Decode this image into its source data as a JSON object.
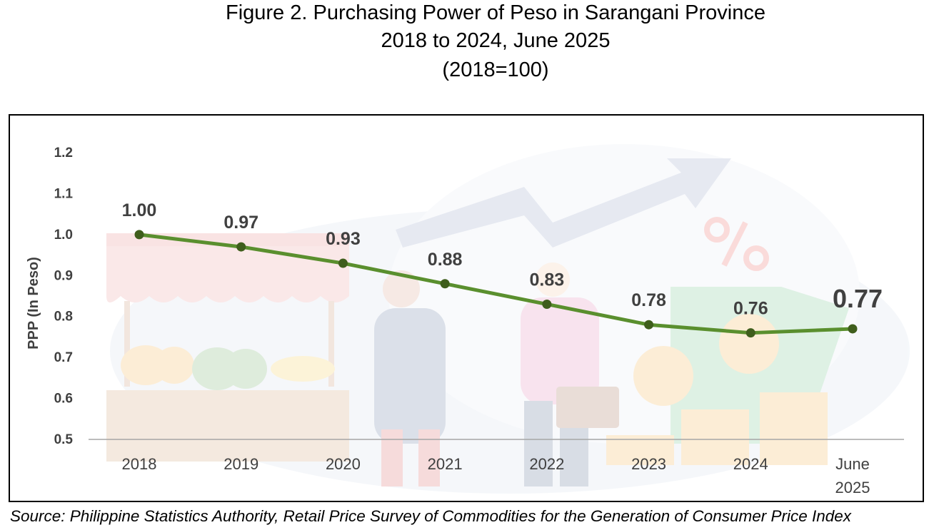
{
  "title": {
    "line1": "Figure 2. Purchasing Power of Peso in Sarangani Province",
    "line2": "2018 to 2024, June 2025",
    "line3": "(2018=100)"
  },
  "source": "Source: Philippine Statistics Authority, Retail Price Survey of Commodities for the Generation of Consumer Price Index",
  "colors": {
    "line": "#5a8f2e",
    "marker": "#3f5e1c",
    "axis": "#a6a6a6",
    "label": "#404040"
  },
  "chart_data": {
    "type": "line",
    "categories": [
      "2018",
      "2019",
      "2020",
      "2021",
      "2022",
      "2023",
      "2024",
      "June 2025"
    ],
    "series": [
      {
        "values": [
          1.0,
          0.97,
          0.93,
          0.88,
          0.83,
          0.78,
          0.76,
          0.77
        ],
        "labels": [
          "1.00",
          "0.97",
          "0.93",
          "0.88",
          "0.83",
          "0.78",
          "0.76",
          "0.77"
        ]
      }
    ],
    "xlabel": "",
    "ylabel": "PPP (In Peso)",
    "ylim": [
      0.5,
      1.2
    ],
    "yticks": [
      "0.5",
      "0.6",
      "0.7",
      "0.8",
      "0.9",
      "1.0",
      "1.1",
      "1.2"
    ],
    "grid": false,
    "legend": "none"
  }
}
